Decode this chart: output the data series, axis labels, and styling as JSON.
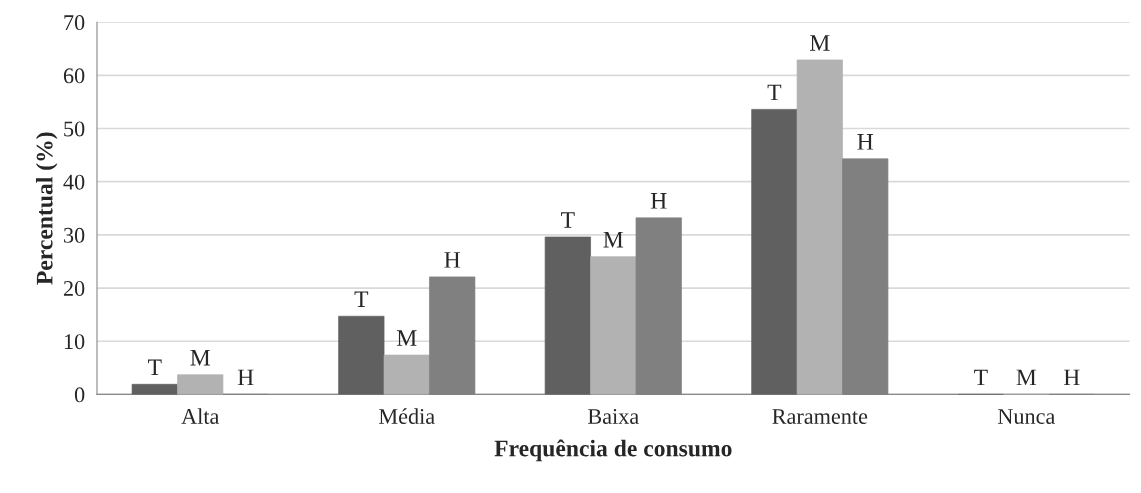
{
  "chart_data": {
    "type": "bar",
    "xlabel": "Frequência de consumo",
    "ylabel": "Percentual (%)",
    "categories": [
      "Alta",
      "Média",
      "Baixa",
      "Raramente",
      "Nunca"
    ],
    "series": [
      {
        "name": "T",
        "color": "#606060",
        "values": [
          1.9,
          14.7,
          29.6,
          53.6,
          0
        ]
      },
      {
        "name": "M",
        "color": "#b2b2b2",
        "values": [
          3.7,
          7.4,
          25.9,
          62.9,
          0
        ]
      },
      {
        "name": "H",
        "color": "#808080",
        "values": [
          0,
          22.1,
          33.2,
          44.3,
          0
        ]
      }
    ],
    "ylim": [
      0,
      70
    ],
    "yticks": [
      0,
      10,
      20,
      30,
      40,
      50,
      60,
      70
    ],
    "grid": "y",
    "legend": false
  }
}
